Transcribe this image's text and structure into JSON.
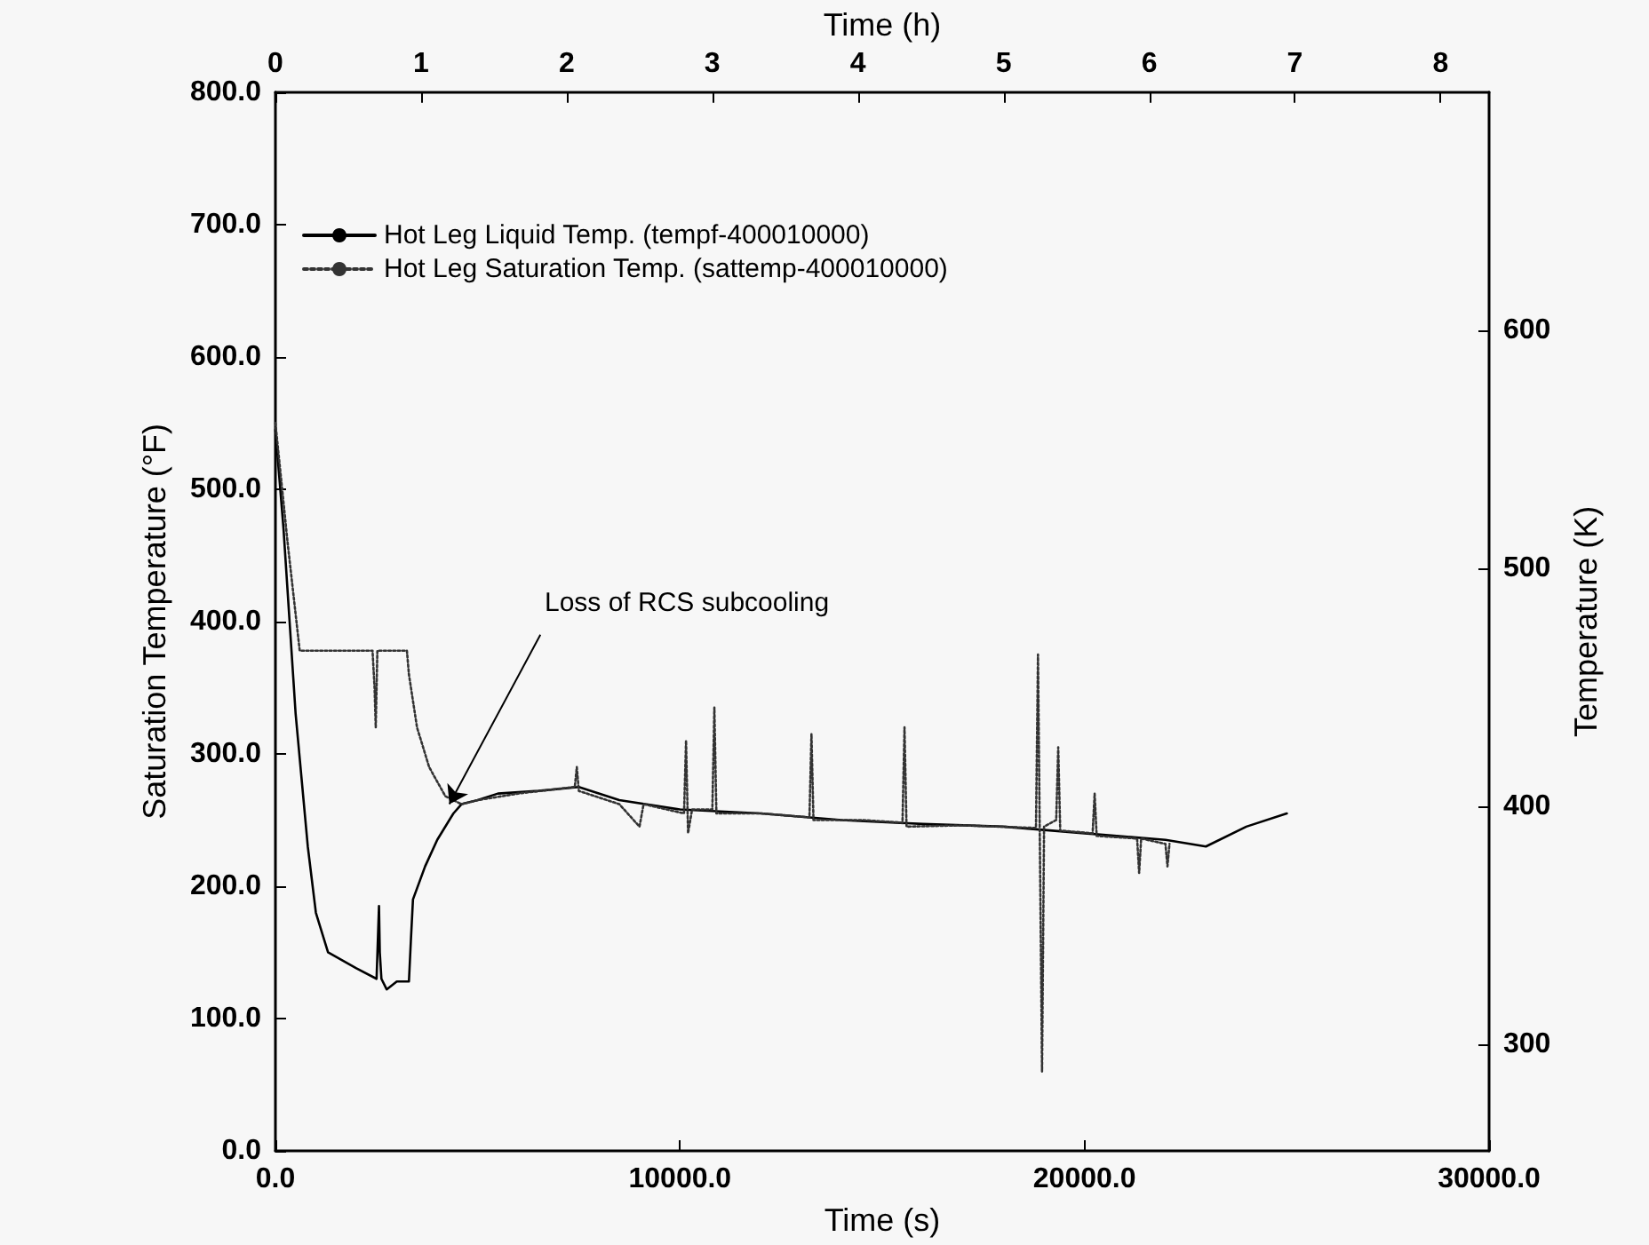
{
  "chart_data": {
    "type": "line",
    "xlabel": "Time (s)",
    "ylabel": "Saturation Temperature (°F)",
    "y2label": "Temperature (K)",
    "x2label": "Time (h)",
    "xlim": [
      0,
      30000
    ],
    "xticks": [
      {
        "value": 0,
        "label": "0.0"
      },
      {
        "value": 10000,
        "label": "10000.0"
      },
      {
        "value": 20000,
        "label": "20000.0"
      },
      {
        "value": 30000,
        "label": "30000.0"
      }
    ],
    "ylim": [
      0,
      800
    ],
    "yticks": [
      {
        "value": 0,
        "label": "0.0"
      },
      {
        "value": 100,
        "label": "100.0"
      },
      {
        "value": 200,
        "label": "200.0"
      },
      {
        "value": 300,
        "label": "300.0"
      },
      {
        "value": 400,
        "label": "400.0"
      },
      {
        "value": 500,
        "label": "500.0"
      },
      {
        "value": 600,
        "label": "600.0"
      },
      {
        "value": 700,
        "label": "700.0"
      },
      {
        "value": 800,
        "label": "800.0"
      }
    ],
    "y2lim": [
      255.4,
      699.8
    ],
    "y2ticks": [
      300,
      400,
      500,
      600
    ],
    "x2lim": [
      0,
      8.333
    ],
    "x2ticks": [
      0,
      1,
      2,
      3,
      4,
      5,
      6,
      7,
      8
    ],
    "grid": false,
    "legend": "top left",
    "marker": "none",
    "annotations": [
      {
        "text": "Loss of RCS subcooling",
        "x": 4300,
        "y": 262
      }
    ],
    "series": [
      {
        "name": "Hot Leg Liquid Temp. (tempf-400010000)",
        "color": "#000000",
        "line_style": "solid",
        "x": [
          0,
          200,
          500,
          800,
          1000,
          1300,
          2000,
          2500,
          2560,
          2580,
          2620,
          2750,
          3000,
          3300,
          3350,
          3400,
          3700,
          4000,
          4400,
          4600,
          5000,
          5500,
          6500,
          7500,
          8500,
          10000,
          12000,
          14000,
          16000,
          18000,
          20000,
          22000,
          23000,
          24000,
          25000
        ],
        "values": [
          545,
          470,
          330,
          230,
          180,
          150,
          138,
          130,
          185,
          150,
          130,
          122,
          128,
          128,
          160,
          190,
          215,
          235,
          255,
          262,
          265,
          270,
          272,
          275,
          265,
          258,
          255,
          250,
          247,
          245,
          240,
          235,
          230,
          245,
          255
        ]
      },
      {
        "name": "Hot Leg Saturation Temp. (sattemp-400010000)",
        "color": "#333333",
        "line_style": "dotted",
        "x": [
          0,
          300,
          600,
          2400,
          2450,
          2480,
          2520,
          3250,
          3300,
          3500,
          3800,
          4200,
          4600,
          5000,
          6000,
          7400,
          7450,
          7500,
          8500,
          9000,
          9100,
          10100,
          10150,
          10200,
          10300,
          10800,
          10850,
          10900,
          12000,
          13200,
          13250,
          13300,
          14500,
          15500,
          15550,
          15600,
          17000,
          18800,
          18850,
          18900,
          18950,
          19000,
          19300,
          19350,
          19400,
          20200,
          20250,
          20300,
          21300,
          21350,
          21400,
          22000,
          22050,
          22100
        ],
        "values": [
          550,
          460,
          378,
          378,
          350,
          320,
          378,
          378,
          360,
          320,
          290,
          268,
          262,
          265,
          270,
          275,
          290,
          272,
          262,
          245,
          262,
          255,
          310,
          240,
          258,
          258,
          335,
          255,
          255,
          252,
          315,
          250,
          250,
          248,
          320,
          245,
          246,
          244,
          375,
          220,
          60,
          245,
          250,
          305,
          242,
          240,
          270,
          238,
          236,
          210,
          236,
          232,
          215,
          232
        ]
      }
    ]
  }
}
